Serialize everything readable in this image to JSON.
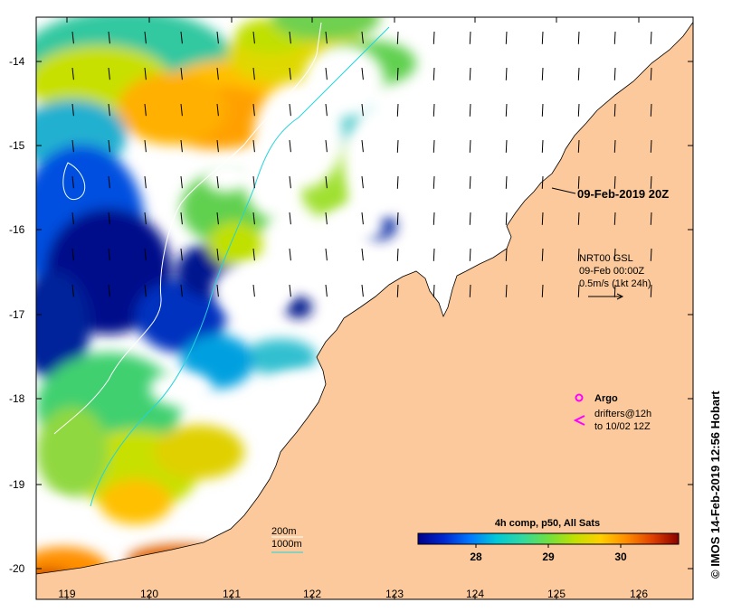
{
  "map": {
    "lon_ticks": [
      "119",
      "120",
      "121",
      "122",
      "123",
      "124",
      "125",
      "126"
    ],
    "lat_ticks": [
      "-14",
      "-15",
      "-16",
      "-17",
      "-18",
      "-19",
      "-20"
    ],
    "lon_range": [
      118.7,
      126.7
    ],
    "lat_range": [
      -20.1,
      -13.5
    ],
    "land_color": "#fbc99b",
    "datetime_label": "09-Feb-2019 20Z",
    "current_legend": {
      "line1": "NRT00 GSL",
      "line2": "09-Feb 00:00Z",
      "line3": "0.5m/s (1kt 24h)"
    },
    "symbol_legend": {
      "argo": "Argo",
      "drifters_line1": "drifters@12h",
      "drifters_line2": "to 10/02 12Z",
      "symbol_color": "#ff00ff"
    },
    "contours": {
      "label_200": "200m",
      "label_1000": "1000m",
      "color": "#22d3dd"
    },
    "colorbar": {
      "title": "4h comp, p50, All Sats",
      "tick_labels": [
        "28",
        "29",
        "30"
      ],
      "range": [
        27.2,
        30.8
      ],
      "colors": [
        "#00008b",
        "#0028d2",
        "#0078ff",
        "#00c8d8",
        "#30d8a0",
        "#70e040",
        "#c0e000",
        "#ffd000",
        "#ff8c00",
        "#e04000",
        "#8b0000"
      ]
    },
    "credit": "© IMOS 14-Feb-2019 12:56 Hobart"
  }
}
